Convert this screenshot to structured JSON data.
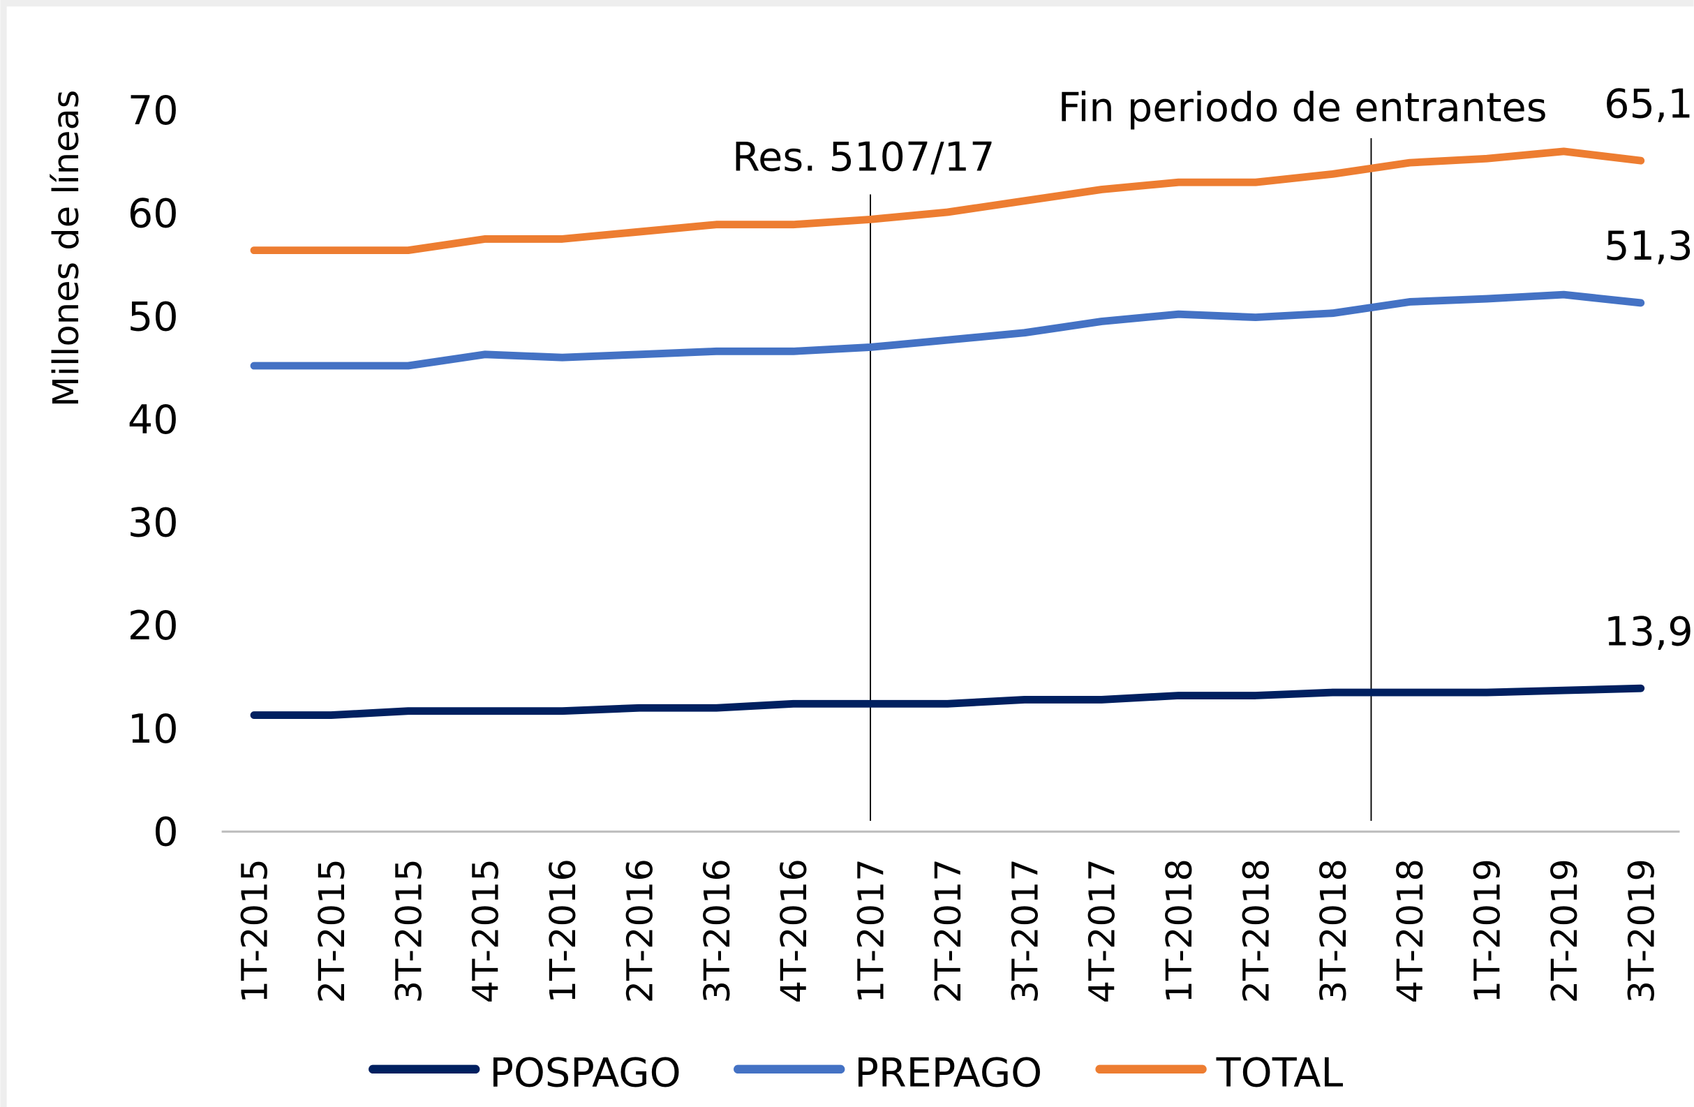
{
  "chart_data": {
    "type": "line",
    "y_label": "Millones de líneas",
    "categories": [
      "1T-2015",
      "2T-2015",
      "3T-2015",
      "4T-2015",
      "1T-2016",
      "2T-2016",
      "3T-2016",
      "4T-2016",
      "1T-2017",
      "2T-2017",
      "3T-2017",
      "4T-2017",
      "1T-2018",
      "2T-2018",
      "3T-2018",
      "4T-2018",
      "1T-2019",
      "2T-2019",
      "3T-2019"
    ],
    "series": [
      {
        "name": "POSPAGO",
        "color": "#002060",
        "values": [
          11.3,
          11.3,
          11.7,
          11.7,
          11.7,
          12.0,
          12.0,
          12.4,
          12.4,
          12.4,
          12.8,
          12.8,
          13.2,
          13.2,
          13.5,
          13.5,
          13.5,
          13.7,
          13.9
        ],
        "value_labels": {
          "18": "13,9"
        }
      },
      {
        "name": "PREPAGO",
        "color": "#4472c4",
        "values": [
          45.2,
          45.2,
          45.2,
          46.3,
          46.0,
          46.3,
          46.6,
          46.6,
          47.0,
          47.7,
          48.4,
          49.5,
          50.2,
          49.9,
          50.3,
          51.4,
          51.7,
          52.1,
          51.3
        ],
        "value_labels": {
          "18": "51,3"
        }
      },
      {
        "name": "TOTAL",
        "color": "#ed7d31",
        "values": [
          56.4,
          56.4,
          56.4,
          57.5,
          57.5,
          58.2,
          58.9,
          58.9,
          59.4,
          60.1,
          61.2,
          62.3,
          63.0,
          63.0,
          63.8,
          64.9,
          65.3,
          66.0,
          65.1
        ],
        "value_labels": {
          "18": "65,1"
        }
      }
    ],
    "annotations": [
      {
        "text": "Res. 5107/17",
        "x": 8
      },
      {
        "text": "Fin periodo de entrantes",
        "x": 14.5
      }
    ],
    "ylim": [
      0,
      70
    ],
    "yticks": [
      0,
      10,
      20,
      30,
      40,
      50,
      60,
      70
    ],
    "legend": "bottom"
  }
}
